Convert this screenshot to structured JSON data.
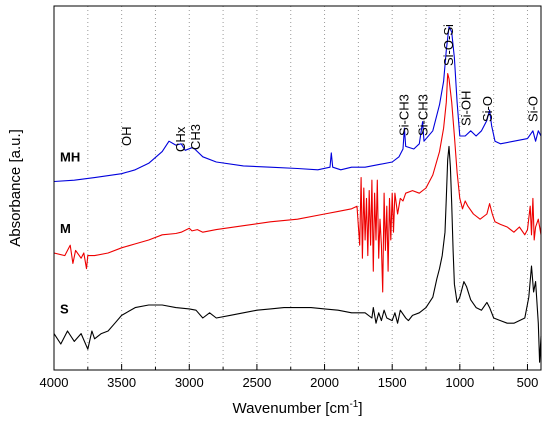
{
  "chart_data": {
    "type": "line",
    "title": "",
    "xlabel": "Wavenumber [cm",
    "xlabel_sup": "-1",
    "xlabel_close": "]",
    "ylabel": "Absorbance [a.u.]",
    "xlim": [
      4000,
      400
    ],
    "x_reversed": true,
    "x_ticks": [
      4000,
      3500,
      3000,
      2500,
      2000,
      1500,
      1000,
      500
    ],
    "x_tick_labels": [
      "4000",
      "3500",
      "3000",
      "2500",
      "2000",
      "1500",
      "1000",
      "500"
    ],
    "y_ticks_shown": false,
    "grid": "vertical-dotted",
    "legend": "none",
    "annotations": [
      {
        "text": "OH",
        "x": 3460,
        "orientation": "vertical"
      },
      {
        "text": "CHx",
        "x": 3060,
        "orientation": "vertical"
      },
      {
        "text": "CH3",
        "x": 2950,
        "orientation": "vertical"
      },
      {
        "text": "Si-CH3",
        "x": 1410,
        "orientation": "vertical"
      },
      {
        "text": "Si-CH3",
        "x": 1270,
        "orientation": "vertical"
      },
      {
        "text": "Si-O-Si",
        "x": 1080,
        "orientation": "vertical"
      },
      {
        "text": "Si-OH",
        "x": 950,
        "orientation": "vertical"
      },
      {
        "text": "Si-O",
        "x": 790,
        "orientation": "vertical"
      },
      {
        "text": "Si-O",
        "x": 455,
        "orientation": "vertical"
      }
    ],
    "series": [
      {
        "name": "MH",
        "color": "#0000dd",
        "points": [
          [
            4000,
            0.645
          ],
          [
            3850,
            0.65
          ],
          [
            3700,
            0.66
          ],
          [
            3500,
            0.675
          ],
          [
            3400,
            0.69
          ],
          [
            3300,
            0.715
          ],
          [
            3200,
            0.76
          ],
          [
            3150,
            0.8
          ],
          [
            3100,
            0.785
          ],
          [
            3060,
            0.79
          ],
          [
            3030,
            0.765
          ],
          [
            2980,
            0.775
          ],
          [
            2960,
            0.77
          ],
          [
            2900,
            0.74
          ],
          [
            2800,
            0.72
          ],
          [
            2600,
            0.705
          ],
          [
            2400,
            0.7
          ],
          [
            2200,
            0.695
          ],
          [
            2050,
            0.69
          ],
          [
            1960,
            0.7
          ],
          [
            1950,
            0.755
          ],
          [
            1940,
            0.7
          ],
          [
            1880,
            0.69
          ],
          [
            1800,
            0.7
          ],
          [
            1700,
            0.7
          ],
          [
            1600,
            0.71
          ],
          [
            1500,
            0.72
          ],
          [
            1450,
            0.74
          ],
          [
            1420,
            0.77
          ],
          [
            1410,
            0.85
          ],
          [
            1400,
            0.78
          ],
          [
            1340,
            0.77
          ],
          [
            1300,
            0.79
          ],
          [
            1275,
            0.875
          ],
          [
            1265,
            0.8
          ],
          [
            1200,
            0.84
          ],
          [
            1150,
            0.94
          ],
          [
            1120,
            1.03
          ],
          [
            1100,
            1.15
          ],
          [
            1080,
            1.24
          ],
          [
            1060,
            1.22
          ],
          [
            1040,
            1.12
          ],
          [
            1020,
            0.95
          ],
          [
            1000,
            0.82
          ],
          [
            960,
            0.82
          ],
          [
            920,
            0.84
          ],
          [
            880,
            0.82
          ],
          [
            840,
            0.84
          ],
          [
            800,
            0.88
          ],
          [
            780,
            0.92
          ],
          [
            765,
            0.86
          ],
          [
            740,
            0.8
          ],
          [
            700,
            0.79
          ],
          [
            600,
            0.8
          ],
          [
            500,
            0.81
          ],
          [
            460,
            0.84
          ],
          [
            440,
            0.8
          ],
          [
            420,
            0.84
          ],
          [
            400,
            0.82
          ]
        ]
      },
      {
        "name": "M",
        "color": "#ee0000",
        "points": [
          [
            4000,
            0.37
          ],
          [
            3920,
            0.36
          ],
          [
            3880,
            0.4
          ],
          [
            3860,
            0.33
          ],
          [
            3840,
            0.38
          ],
          [
            3800,
            0.35
          ],
          [
            3780,
            0.37
          ],
          [
            3760,
            0.31
          ],
          [
            3750,
            0.36
          ],
          [
            3700,
            0.36
          ],
          [
            3600,
            0.37
          ],
          [
            3500,
            0.39
          ],
          [
            3400,
            0.405
          ],
          [
            3300,
            0.42
          ],
          [
            3200,
            0.44
          ],
          [
            3100,
            0.445
          ],
          [
            3060,
            0.45
          ],
          [
            3000,
            0.465
          ],
          [
            2980,
            0.455
          ],
          [
            2940,
            0.46
          ],
          [
            2900,
            0.45
          ],
          [
            2800,
            0.46
          ],
          [
            2600,
            0.475
          ],
          [
            2400,
            0.49
          ],
          [
            2200,
            0.5
          ],
          [
            2000,
            0.52
          ],
          [
            1900,
            0.53
          ],
          [
            1800,
            0.54
          ],
          [
            1760,
            0.55
          ],
          [
            1740,
            0.4
          ],
          [
            1730,
            0.66
          ],
          [
            1720,
            0.35
          ],
          [
            1710,
            0.62
          ],
          [
            1700,
            0.42
          ],
          [
            1690,
            0.58
          ],
          [
            1680,
            0.36
          ],
          [
            1670,
            0.61
          ],
          [
            1660,
            0.4
          ],
          [
            1650,
            0.65
          ],
          [
            1640,
            0.3
          ],
          [
            1630,
            0.6
          ],
          [
            1620,
            0.42
          ],
          [
            1610,
            0.65
          ],
          [
            1600,
            0.35
          ],
          [
            1590,
            0.5
          ],
          [
            1580,
            0.4
          ],
          [
            1570,
            0.22
          ],
          [
            1560,
            0.6
          ],
          [
            1550,
            0.38
          ],
          [
            1540,
            0.55
          ],
          [
            1530,
            0.3
          ],
          [
            1520,
            0.58
          ],
          [
            1510,
            0.42
          ],
          [
            1500,
            0.6
          ],
          [
            1490,
            0.45
          ],
          [
            1480,
            0.6
          ],
          [
            1460,
            0.52
          ],
          [
            1440,
            0.58
          ],
          [
            1420,
            0.57
          ],
          [
            1400,
            0.6
          ],
          [
            1350,
            0.61
          ],
          [
            1300,
            0.6
          ],
          [
            1250,
            0.62
          ],
          [
            1200,
            0.67
          ],
          [
            1150,
            0.76
          ],
          [
            1120,
            0.85
          ],
          [
            1100,
            0.95
          ],
          [
            1090,
            1.06
          ],
          [
            1080,
            1.04
          ],
          [
            1060,
            0.95
          ],
          [
            1040,
            0.82
          ],
          [
            1020,
            0.68
          ],
          [
            1000,
            0.58
          ],
          [
            980,
            0.54
          ],
          [
            960,
            0.57
          ],
          [
            940,
            0.55
          ],
          [
            900,
            0.52
          ],
          [
            850,
            0.5
          ],
          [
            800,
            0.52
          ],
          [
            780,
            0.56
          ],
          [
            760,
            0.52
          ],
          [
            740,
            0.49
          ],
          [
            700,
            0.48
          ],
          [
            650,
            0.47
          ],
          [
            600,
            0.45
          ],
          [
            560,
            0.47
          ],
          [
            520,
            0.44
          ],
          [
            500,
            0.46
          ],
          [
            480,
            0.55
          ],
          [
            470,
            0.44
          ],
          [
            460,
            0.58
          ],
          [
            450,
            0.42
          ],
          [
            440,
            0.47
          ],
          [
            420,
            0.5
          ],
          [
            400,
            0.44
          ]
        ]
      },
      {
        "name": "S",
        "color": "#000000",
        "points": [
          [
            4000,
            0.06
          ],
          [
            3950,
            0.02
          ],
          [
            3900,
            0.07
          ],
          [
            3850,
            0.03
          ],
          [
            3800,
            0.06
          ],
          [
            3750,
            0.0
          ],
          [
            3720,
            0.07
          ],
          [
            3700,
            0.04
          ],
          [
            3650,
            0.06
          ],
          [
            3600,
            0.07
          ],
          [
            3550,
            0.1
          ],
          [
            3500,
            0.13
          ],
          [
            3400,
            0.16
          ],
          [
            3300,
            0.17
          ],
          [
            3200,
            0.17
          ],
          [
            3100,
            0.16
          ],
          [
            3000,
            0.155
          ],
          [
            2950,
            0.15
          ],
          [
            2900,
            0.12
          ],
          [
            2850,
            0.14
          ],
          [
            2800,
            0.12
          ],
          [
            2700,
            0.13
          ],
          [
            2600,
            0.14
          ],
          [
            2500,
            0.15
          ],
          [
            2400,
            0.155
          ],
          [
            2300,
            0.16
          ],
          [
            2200,
            0.16
          ],
          [
            2100,
            0.16
          ],
          [
            2000,
            0.155
          ],
          [
            1900,
            0.15
          ],
          [
            1800,
            0.14
          ],
          [
            1700,
            0.14
          ],
          [
            1650,
            0.12
          ],
          [
            1640,
            0.16
          ],
          [
            1620,
            0.1
          ],
          [
            1600,
            0.14
          ],
          [
            1580,
            0.11
          ],
          [
            1560,
            0.15
          ],
          [
            1540,
            0.12
          ],
          [
            1500,
            0.11
          ],
          [
            1480,
            0.14
          ],
          [
            1460,
            0.1
          ],
          [
            1440,
            0.15
          ],
          [
            1400,
            0.12
          ],
          [
            1380,
            0.11
          ],
          [
            1350,
            0.13
          ],
          [
            1300,
            0.14
          ],
          [
            1250,
            0.16
          ],
          [
            1200,
            0.2
          ],
          [
            1170,
            0.27
          ],
          [
            1150,
            0.31
          ],
          [
            1130,
            0.36
          ],
          [
            1110,
            0.45
          ],
          [
            1100,
            0.58
          ],
          [
            1090,
            0.73
          ],
          [
            1080,
            0.78
          ],
          [
            1070,
            0.7
          ],
          [
            1060,
            0.56
          ],
          [
            1050,
            0.38
          ],
          [
            1040,
            0.25
          ],
          [
            1020,
            0.18
          ],
          [
            1000,
            0.2
          ],
          [
            970,
            0.26
          ],
          [
            950,
            0.24
          ],
          [
            920,
            0.19
          ],
          [
            880,
            0.16
          ],
          [
            840,
            0.15
          ],
          [
            800,
            0.18
          ],
          [
            780,
            0.16
          ],
          [
            750,
            0.12
          ],
          [
            700,
            0.11
          ],
          [
            650,
            0.1
          ],
          [
            600,
            0.1
          ],
          [
            560,
            0.11
          ],
          [
            520,
            0.12
          ],
          [
            490,
            0.2
          ],
          [
            470,
            0.32
          ],
          [
            455,
            0.22
          ],
          [
            440,
            0.26
          ],
          [
            420,
            0.1
          ],
          [
            410,
            -0.05
          ],
          [
            400,
            0.05
          ]
        ]
      }
    ]
  }
}
